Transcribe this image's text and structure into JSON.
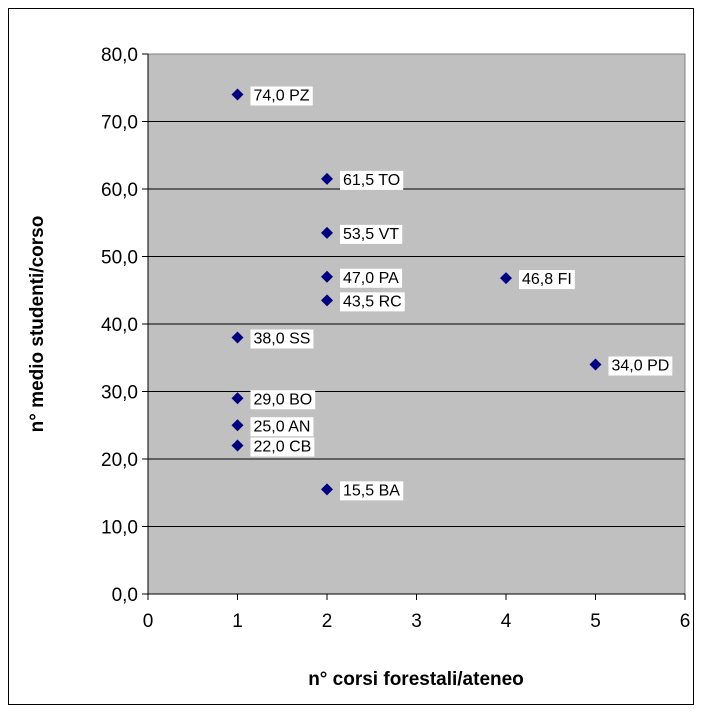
{
  "chart_data": {
    "type": "scatter",
    "title": "",
    "xlabel": "n° corsi forestali/ateneo",
    "ylabel": "n° medio studenti/corso",
    "xlim": [
      0,
      6
    ],
    "ylim": [
      0,
      80
    ],
    "x_ticks": [
      0,
      1,
      2,
      3,
      4,
      5,
      6
    ],
    "y_ticks": [
      0,
      10,
      20,
      30,
      40,
      50,
      60,
      70,
      80
    ],
    "x_tick_labels": [
      "0",
      "1",
      "2",
      "3",
      "4",
      "5",
      "6"
    ],
    "y_tick_labels": [
      "0,0",
      "10,0",
      "20,0",
      "30,0",
      "40,0",
      "50,0",
      "60,0",
      "70,0",
      "80,0"
    ],
    "grid": "horizontal major gridlines",
    "legend": "none",
    "plot_background": "#c0c0c0",
    "marker_color": "#000080",
    "marker": "diamond",
    "points": [
      {
        "x": 1,
        "y": 74.0,
        "label": "74,0 PZ"
      },
      {
        "x": 2,
        "y": 61.5,
        "label": "61,5 TO"
      },
      {
        "x": 2,
        "y": 53.5,
        "label": "53,5 VT"
      },
      {
        "x": 2,
        "y": 47.0,
        "label": "47,0 PA"
      },
      {
        "x": 4,
        "y": 46.8,
        "label": "46,8 FI"
      },
      {
        "x": 2,
        "y": 43.5,
        "label": "43,5 RC"
      },
      {
        "x": 1,
        "y": 38.0,
        "label": "38,0 SS"
      },
      {
        "x": 5,
        "y": 34.0,
        "label": "34,0 PD"
      },
      {
        "x": 1,
        "y": 29.0,
        "label": "29,0 BO"
      },
      {
        "x": 1,
        "y": 25.0,
        "label": "25,0 AN"
      },
      {
        "x": 1,
        "y": 22.0,
        "label": "22,0 CB"
      },
      {
        "x": 2,
        "y": 15.5,
        "label": "15,5 BA"
      }
    ]
  }
}
